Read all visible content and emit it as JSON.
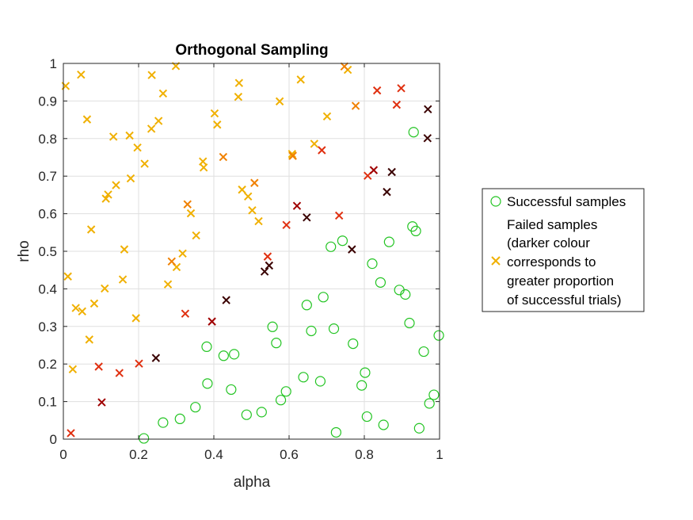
{
  "chart_data": {
    "type": "scatter",
    "title": "Orthogonal Sampling",
    "xlabel": "alpha",
    "ylabel": "rho",
    "xlim": [
      0,
      1
    ],
    "ylim": [
      0,
      1
    ],
    "xticks": [
      "0",
      "0.2",
      "0.4",
      "0.6",
      "0.8",
      "1"
    ],
    "yticks": [
      "0",
      "0.1",
      "0.2",
      "0.3",
      "0.4",
      "0.5",
      "0.6",
      "0.7",
      "0.8",
      "0.9",
      "1"
    ],
    "grid": true,
    "legend_position": "right-outside",
    "legend": [
      {
        "label": "Successful samples",
        "marker": "circle",
        "color": "#22c422"
      },
      {
        "label_lines": [
          "Failed samples",
          "(darker colour",
          "corresponds to",
          "greater proportion",
          "of successful trials)"
        ],
        "marker": "x",
        "color": "#f0b000"
      }
    ],
    "colors": {
      "success": "#22c422",
      "fail_levels": [
        "#f0b000",
        "#f08000",
        "#e03010",
        "#a00000",
        "#3a0000"
      ]
    },
    "series": [
      {
        "name": "Successful samples",
        "marker": "circle",
        "points": [
          [
            0.214,
            0.002
          ],
          [
            0.265,
            0.044
          ],
          [
            0.31,
            0.054
          ],
          [
            0.351,
            0.085
          ],
          [
            0.383,
            0.148
          ],
          [
            0.381,
            0.246
          ],
          [
            0.426,
            0.222
          ],
          [
            0.454,
            0.226
          ],
          [
            0.446,
            0.132
          ],
          [
            0.487,
            0.065
          ],
          [
            0.527,
            0.072
          ],
          [
            0.578,
            0.104
          ],
          [
            0.592,
            0.127
          ],
          [
            0.556,
            0.299
          ],
          [
            0.566,
            0.256
          ],
          [
            0.638,
            0.165
          ],
          [
            0.683,
            0.154
          ],
          [
            0.647,
            0.357
          ],
          [
            0.659,
            0.288
          ],
          [
            0.691,
            0.378
          ],
          [
            0.711,
            0.512
          ],
          [
            0.742,
            0.528
          ],
          [
            0.719,
            0.294
          ],
          [
            0.77,
            0.254
          ],
          [
            0.725,
            0.018
          ],
          [
            0.807,
            0.06
          ],
          [
            0.802,
            0.177
          ],
          [
            0.793,
            0.143
          ],
          [
            0.821,
            0.467
          ],
          [
            0.843,
            0.417
          ],
          [
            0.866,
            0.525
          ],
          [
            0.893,
            0.397
          ],
          [
            0.909,
            0.385
          ],
          [
            0.92,
            0.309
          ],
          [
            0.851,
            0.038
          ],
          [
            0.928,
            0.566
          ],
          [
            0.937,
            0.554
          ],
          [
            0.931,
            0.817
          ],
          [
            0.958,
            0.233
          ],
          [
            0.973,
            0.095
          ],
          [
            0.985,
            0.118
          ],
          [
            0.998,
            0.276
          ],
          [
            0.946,
            0.029
          ]
        ]
      },
      {
        "name": "Failed samples",
        "marker": "x",
        "points": [
          [
            0.006,
            0.94,
            0
          ],
          [
            0.047,
            0.97,
            0
          ],
          [
            0.063,
            0.851,
            0
          ],
          [
            0.012,
            0.433,
            0
          ],
          [
            0.025,
            0.186,
            0
          ],
          [
            0.033,
            0.349,
            0
          ],
          [
            0.05,
            0.34,
            0
          ],
          [
            0.069,
            0.265,
            0
          ],
          [
            0.074,
            0.558,
            0
          ],
          [
            0.082,
            0.361,
            0
          ],
          [
            0.113,
            0.64,
            0
          ],
          [
            0.119,
            0.651,
            0
          ],
          [
            0.133,
            0.805,
            0
          ],
          [
            0.14,
            0.676,
            0
          ],
          [
            0.11,
            0.401,
            0
          ],
          [
            0.158,
            0.425,
            0
          ],
          [
            0.162,
            0.505,
            0
          ],
          [
            0.176,
            0.808,
            0
          ],
          [
            0.179,
            0.694,
            0
          ],
          [
            0.193,
            0.322,
            0
          ],
          [
            0.197,
            0.776,
            0
          ],
          [
            0.216,
            0.733,
            0
          ],
          [
            0.235,
            0.969,
            0
          ],
          [
            0.234,
            0.826,
            0
          ],
          [
            0.253,
            0.847,
            0
          ],
          [
            0.265,
            0.92,
            0
          ],
          [
            0.278,
            0.412,
            0
          ],
          [
            0.299,
            0.993,
            0
          ],
          [
            0.301,
            0.458,
            0
          ],
          [
            0.317,
            0.494,
            0
          ],
          [
            0.339,
            0.601,
            0
          ],
          [
            0.353,
            0.542,
            0
          ],
          [
            0.371,
            0.739,
            0
          ],
          [
            0.373,
            0.723,
            0
          ],
          [
            0.402,
            0.867,
            0
          ],
          [
            0.409,
            0.837,
            0
          ],
          [
            0.465,
            0.911,
            0
          ],
          [
            0.467,
            0.948,
            0
          ],
          [
            0.475,
            0.664,
            0
          ],
          [
            0.491,
            0.646,
            0
          ],
          [
            0.502,
            0.609,
            0
          ],
          [
            0.519,
            0.58,
            0
          ],
          [
            0.575,
            0.899,
            0
          ],
          [
            0.608,
            0.759,
            0
          ],
          [
            0.609,
            0.754,
            0
          ],
          [
            0.631,
            0.957,
            0
          ],
          [
            0.667,
            0.786,
            0
          ],
          [
            0.701,
            0.859,
            0
          ],
          [
            0.756,
            0.983,
            0
          ],
          [
            0.288,
            0.473,
            1
          ],
          [
            0.33,
            0.625,
            1
          ],
          [
            0.425,
            0.751,
            1
          ],
          [
            0.508,
            0.682,
            1
          ],
          [
            0.61,
            0.754,
            1
          ],
          [
            0.747,
            0.992,
            1
          ],
          [
            0.777,
            0.887,
            1
          ],
          [
            0.02,
            0.016,
            2
          ],
          [
            0.094,
            0.193,
            2
          ],
          [
            0.149,
            0.176,
            2
          ],
          [
            0.201,
            0.201,
            2
          ],
          [
            0.324,
            0.334,
            2
          ],
          [
            0.543,
            0.486,
            2
          ],
          [
            0.593,
            0.57,
            2
          ],
          [
            0.687,
            0.769,
            2
          ],
          [
            0.733,
            0.595,
            2
          ],
          [
            0.809,
            0.701,
            2
          ],
          [
            0.834,
            0.928,
            2
          ],
          [
            0.886,
            0.89,
            2
          ],
          [
            0.898,
            0.934,
            2
          ],
          [
            0.102,
            0.098,
            3
          ],
          [
            0.395,
            0.313,
            3
          ],
          [
            0.621,
            0.621,
            3
          ],
          [
            0.825,
            0.716,
            3
          ],
          [
            0.246,
            0.216,
            4
          ],
          [
            0.433,
            0.37,
            4
          ],
          [
            0.535,
            0.446,
            4
          ],
          [
            0.547,
            0.462,
            4
          ],
          [
            0.647,
            0.59,
            4
          ],
          [
            0.767,
            0.505,
            4
          ],
          [
            0.86,
            0.658,
            4
          ],
          [
            0.873,
            0.711,
            4
          ],
          [
            0.969,
            0.878,
            4
          ],
          [
            0.968,
            0.801,
            4
          ]
        ]
      }
    ]
  }
}
